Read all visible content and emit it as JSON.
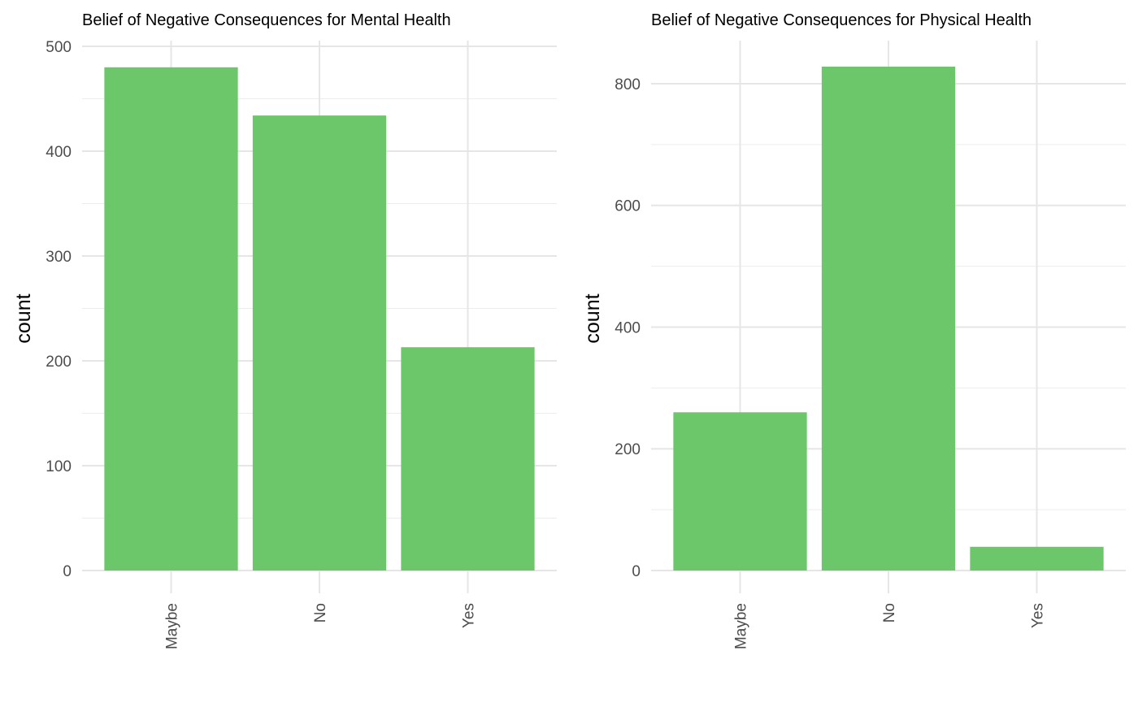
{
  "chart_data": [
    {
      "type": "bar",
      "title": "Belief of Negative Consequences for Mental Health",
      "xlabel": "",
      "ylabel": "count",
      "categories": [
        "Maybe",
        "No",
        "Yes"
      ],
      "values": [
        480,
        434,
        213
      ],
      "ylim": [
        0,
        500
      ],
      "yticks": [
        0,
        100,
        200,
        300,
        400,
        500
      ],
      "ytick_labels": [
        "0",
        "100",
        "200",
        "300",
        "400",
        "500"
      ],
      "bar_color": "#6CC66A",
      "grid": true
    },
    {
      "type": "bar",
      "title": "Belief of Negative Consequences for Physical Health",
      "xlabel": "",
      "ylabel": "count",
      "categories": [
        "Maybe",
        "No",
        "Yes"
      ],
      "values": [
        260,
        828,
        39
      ],
      "ylim": [
        0,
        828
      ],
      "yticks": [
        0,
        200,
        400,
        600,
        800
      ],
      "ytick_labels": [
        "0",
        "200",
        "400",
        "600",
        "800"
      ],
      "bar_color": "#6CC66A",
      "grid": true
    }
  ]
}
